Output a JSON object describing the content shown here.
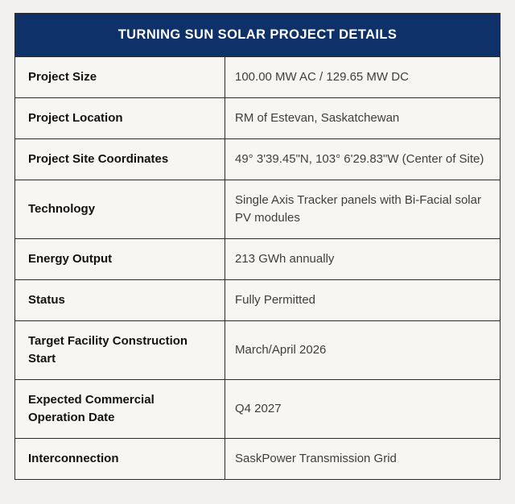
{
  "table": {
    "title": "TURNING SUN SOLAR PROJECT DETAILS",
    "rows": [
      {
        "label": "Project Size",
        "value": "100.00 MW AC / 129.65 MW DC"
      },
      {
        "label": "Project Location",
        "value": "RM of Estevan, Saskatchewan"
      },
      {
        "label": "Project Site Coordinates",
        "value": "49° 3'39.45\"N, 103° 6'29.83\"W (Center of Site)"
      },
      {
        "label": "Technology",
        "value": "Single Axis Tracker panels with Bi-Facial solar PV modules"
      },
      {
        "label": "Energy Output",
        "value": "213 GWh annually"
      },
      {
        "label": "Status",
        "value": "Fully Permitted"
      },
      {
        "label": "Target Facility Construction Start",
        "value": "March/April 2026"
      },
      {
        "label": "Expected Commercial Operation Date",
        "value": "Q4 2027"
      },
      {
        "label": "Interconnection",
        "value": "SaskPower Transmission Grid"
      }
    ],
    "colors": {
      "header_bg": "#0d3168",
      "header_text": "#ffffff",
      "border": "#2b2b2b",
      "cell_bg": "#f7f6f3",
      "page_bg": "#f1f0ee",
      "label_text": "#121212",
      "value_text": "#3e3e3e"
    }
  }
}
